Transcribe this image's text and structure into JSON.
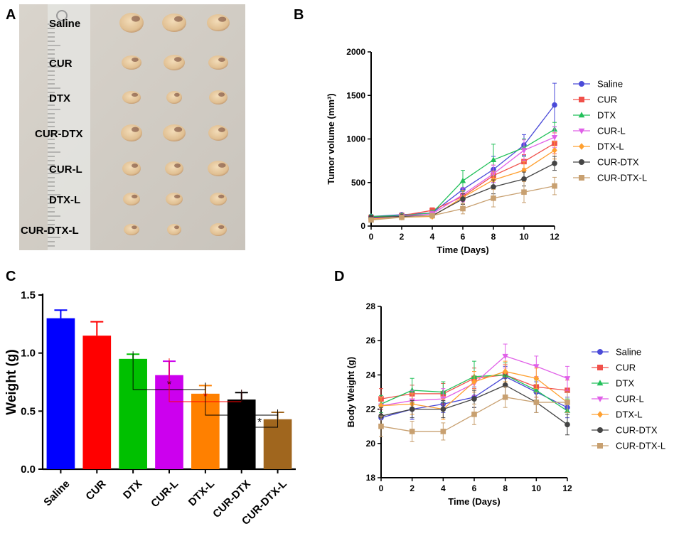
{
  "panel_labels": [
    "A",
    "B",
    "C",
    "D"
  ],
  "photo": {
    "rows": [
      "Saline",
      "CUR",
      "DTX",
      "CUR-DTX",
      "CUR-L",
      "DTX-L",
      "CUR-DTX-L"
    ]
  },
  "chart_data": [
    {
      "panel": "B",
      "type": "line",
      "title": "",
      "xlabel": "Time (Days)",
      "ylabel": "Tumor volume (mm³)",
      "xlim": [
        0,
        12
      ],
      "ylim": [
        0,
        2000
      ],
      "xticks": [
        0,
        2,
        4,
        6,
        8,
        10,
        12
      ],
      "yticks": [
        0,
        500,
        1000,
        1500,
        2000
      ],
      "x": [
        0,
        2,
        4,
        6,
        8,
        10,
        12
      ],
      "legend": "right",
      "series": [
        {
          "name": "Saline",
          "color": "#4a4ad8",
          "marker": "circle",
          "values": [
            110,
            130,
            150,
            420,
            650,
            930,
            1390
          ],
          "errors": [
            20,
            20,
            30,
            80,
            150,
            120,
            250
          ]
        },
        {
          "name": "CUR",
          "color": "#f0504a",
          "marker": "square",
          "values": [
            100,
            120,
            180,
            340,
            580,
            740,
            950
          ],
          "errors": [
            20,
            20,
            30,
            60,
            120,
            80,
            120
          ]
        },
        {
          "name": "DTX",
          "color": "#22c05a",
          "marker": "triangle-up",
          "values": [
            110,
            120,
            150,
            520,
            760,
            900,
            1110
          ],
          "errors": [
            20,
            20,
            30,
            120,
            180,
            100,
            80
          ]
        },
        {
          "name": "CUR-L",
          "color": "#e060e8",
          "marker": "triangle-down",
          "values": [
            90,
            115,
            140,
            360,
            600,
            870,
            1020
          ],
          "errors": [
            20,
            20,
            30,
            80,
            100,
            120,
            120
          ]
        },
        {
          "name": "DTX-L",
          "color": "#ffa030",
          "marker": "diamond",
          "values": [
            80,
            100,
            110,
            330,
            530,
            640,
            870
          ],
          "errors": [
            20,
            20,
            20,
            80,
            100,
            100,
            100
          ]
        },
        {
          "name": "CUR-DTX",
          "color": "#444444",
          "marker": "circle",
          "values": [
            100,
            110,
            120,
            310,
            450,
            540,
            720
          ],
          "errors": [
            20,
            20,
            20,
            60,
            80,
            80,
            80
          ]
        },
        {
          "name": "CUR-DTX-L",
          "color": "#c8a070",
          "marker": "square",
          "values": [
            70,
            100,
            120,
            200,
            320,
            390,
            460
          ],
          "errors": [
            20,
            20,
            20,
            60,
            100,
            120,
            100
          ]
        }
      ]
    },
    {
      "panel": "C",
      "type": "bar",
      "title": "",
      "xlabel": "",
      "ylabel": "Weight (g)",
      "ylim": [
        0,
        1.5
      ],
      "yticks": [
        "0.0",
        "0.5",
        "1.0",
        "1.5"
      ],
      "categories": [
        "Saline",
        "CUR",
        "DTX",
        "CUR-L",
        "DTX-L",
        "CUR-DTX",
        "CUR-DTX-L"
      ],
      "values": [
        1.3,
        1.15,
        0.95,
        0.81,
        0.65,
        0.6,
        0.43
      ],
      "errors": [
        0.07,
        0.12,
        0.04,
        0.12,
        0.07,
        0.06,
        0.06
      ],
      "colors": [
        "#0000ff",
        "#ff0000",
        "#00c000",
        "#cc00ee",
        "#ff8000",
        "#000000",
        "#a0661e"
      ],
      "significance": [
        {
          "label": "*",
          "from": "DTX",
          "to": "DTX-L",
          "color": "#000000"
        },
        {
          "label": "*",
          "from": "CUR-L",
          "to": "CUR-DTX",
          "color": "#ff0000"
        },
        {
          "label": "*",
          "from": "DTX-L",
          "to": "CUR-DTX-L",
          "color": "#000000"
        },
        {
          "label": "*",
          "from": "CUR-DTX",
          "to": "CUR-DTX-L",
          "color": "#000000"
        }
      ]
    },
    {
      "panel": "D",
      "type": "line",
      "title": "",
      "xlabel": "Time (Days)",
      "ylabel": "Body Weight (g)",
      "xlim": [
        0,
        12
      ],
      "ylim": [
        18,
        28
      ],
      "xticks": [
        0,
        2,
        4,
        6,
        8,
        10,
        12
      ],
      "yticks": [
        18,
        20,
        22,
        24,
        26,
        28
      ],
      "x": [
        0,
        2,
        4,
        6,
        8,
        10,
        12
      ],
      "legend": "right",
      "series": [
        {
          "name": "Saline",
          "color": "#4a4ad8",
          "marker": "circle",
          "values": [
            21.5,
            22.0,
            22.3,
            22.7,
            23.9,
            23.0,
            22.1
          ],
          "errors": [
            0.5,
            0.6,
            0.5,
            0.6,
            0.6,
            0.6,
            0.6
          ]
        },
        {
          "name": "CUR",
          "color": "#f0504a",
          "marker": "square",
          "values": [
            22.6,
            22.9,
            22.9,
            23.8,
            24.0,
            23.3,
            23.1
          ],
          "errors": [
            0.6,
            0.5,
            0.6,
            0.6,
            0.6,
            0.6,
            0.6
          ]
        },
        {
          "name": "DTX",
          "color": "#22c05a",
          "marker": "triangle-up",
          "values": [
            22.3,
            23.1,
            23.0,
            23.9,
            24.0,
            23.1,
            21.9
          ],
          "errors": [
            0.5,
            0.7,
            0.6,
            0.9,
            0.7,
            0.6,
            0.7
          ]
        },
        {
          "name": "CUR-L",
          "color": "#e060e8",
          "marker": "triangle-down",
          "values": [
            22.2,
            22.5,
            22.6,
            23.5,
            25.1,
            24.5,
            23.8
          ],
          "errors": [
            0.5,
            0.6,
            0.6,
            0.7,
            0.7,
            0.6,
            0.7
          ]
        },
        {
          "name": "DTX-L",
          "color": "#ffa030",
          "marker": "diamond",
          "values": [
            22.2,
            22.3,
            22.0,
            23.6,
            24.2,
            23.8,
            22.4
          ],
          "errors": [
            0.5,
            0.6,
            0.6,
            0.6,
            0.6,
            0.6,
            0.6
          ]
        },
        {
          "name": "CUR-DTX",
          "color": "#444444",
          "marker": "circle",
          "values": [
            21.6,
            22.0,
            22.0,
            22.6,
            23.4,
            22.4,
            21.1
          ],
          "errors": [
            0.5,
            0.5,
            0.5,
            0.5,
            0.6,
            0.6,
            0.6
          ]
        },
        {
          "name": "CUR-DTX-L",
          "color": "#c8a070",
          "marker": "square",
          "values": [
            21.0,
            20.7,
            20.7,
            21.7,
            22.7,
            22.4,
            22.4
          ],
          "errors": [
            0.6,
            0.6,
            0.5,
            0.6,
            0.6,
            0.6,
            0.6
          ]
        }
      ]
    }
  ]
}
